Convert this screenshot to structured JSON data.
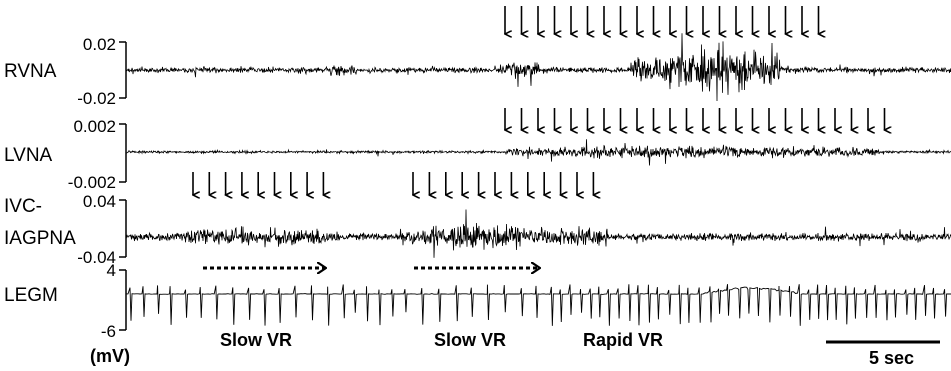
{
  "chart_data": {
    "type": "line",
    "unit_label": "(mV)",
    "scale_bar_label": "5 sec",
    "traces": [
      {
        "name": "RVNA",
        "ylim": [
          -0.02,
          0.02
        ],
        "tick_labels": [
          "0.02",
          "-0.02"
        ]
      },
      {
        "name": "LVNA",
        "ylim": [
          -0.002,
          0.002
        ],
        "tick_labels": [
          "0.002",
          "-0.002"
        ]
      },
      {
        "name": "IVC-IAGPNA",
        "name_lines": [
          "IVC-",
          "IAGPNA"
        ],
        "ylim": [
          -0.04,
          0.04
        ],
        "tick_labels": [
          "0.04",
          "-0.04"
        ]
      },
      {
        "name": "LEGM",
        "ylim": [
          -6,
          4
        ],
        "tick_labels": [
          "4",
          "-6"
        ]
      }
    ],
    "annotations": [
      {
        "text": "Slow VR"
      },
      {
        "text": "Slow VR"
      },
      {
        "text": "Rapid VR"
      }
    ],
    "arrow_groups": [
      {
        "trace": "RVNA",
        "count": 20
      },
      {
        "trace": "LVNA",
        "count": 24
      },
      {
        "trace": "IVC-IAGPNA",
        "count": 9
      },
      {
        "trace": "IVC-IAGPNA",
        "count": 12
      }
    ]
  }
}
